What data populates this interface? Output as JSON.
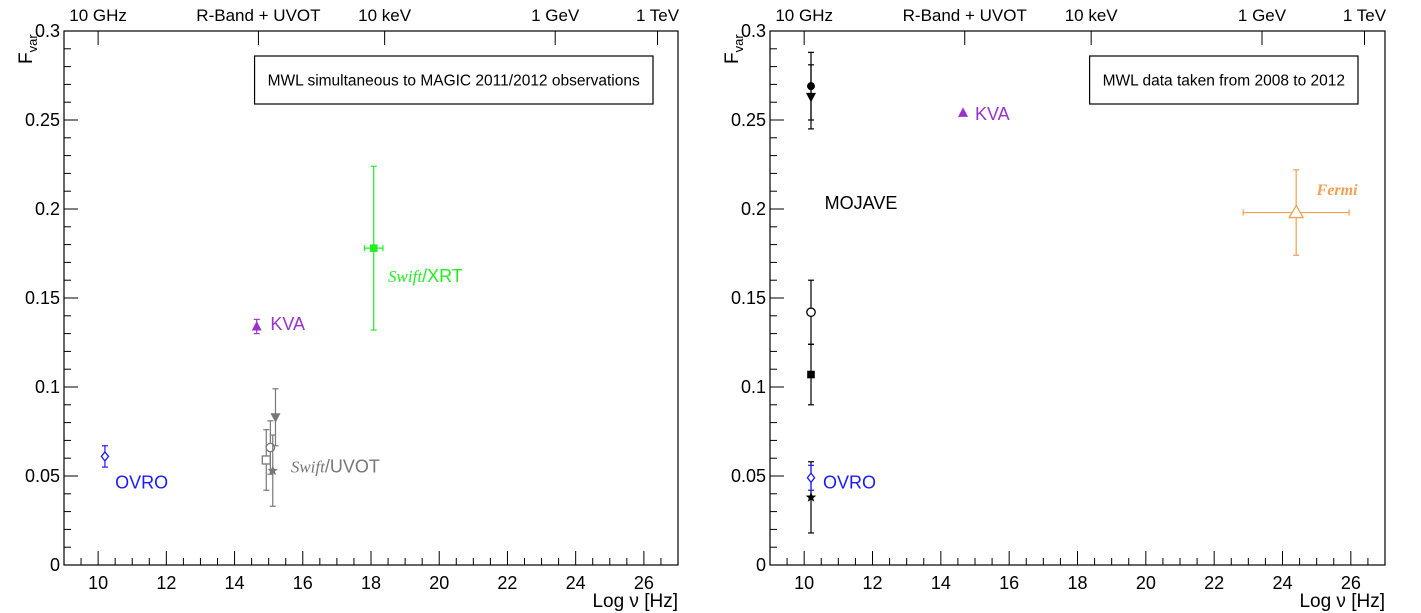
{
  "chart_data": [
    {
      "type": "scatter",
      "xlabel": "Log ν [Hz]",
      "ylabel": "F",
      "ylabel_sub": "var",
      "xlim": [
        9,
        27
      ],
      "ylim": [
        0,
        0.3
      ],
      "xticks": [
        10,
        12,
        14,
        16,
        18,
        20,
        22,
        24,
        26
      ],
      "yticks": [
        0,
        0.05,
        0.1,
        0.15,
        0.2,
        0.25,
        0.3
      ],
      "ytick_labels": [
        "0",
        "0.05",
        "0.1",
        "0.15",
        "0.2",
        "0.25",
        "0.3"
      ],
      "top_axis": [
        {
          "label": "10 GHz",
          "x": 10
        },
        {
          "label": "R-Band + UVOT",
          "x": 14.7
        },
        {
          "label": "10 keV",
          "x": 18.4
        },
        {
          "label": "1 GeV",
          "x": 23.4
        },
        {
          "label": "1 TeV",
          "x": 26.4
        }
      ],
      "legend": "MWL simultaneous to MAGIC 2011/2012 observations",
      "series": [
        {
          "color": "#1a1aff",
          "points": [
            {
              "x": 10.2,
              "y": 0.061,
              "yerr": 0.006,
              "marker": "open-diamond"
            }
          ]
        },
        {
          "color": "#9933cc",
          "points": [
            {
              "x": 14.65,
              "y": 0.134,
              "yerr": 0.004,
              "marker": "filled-triangle-up"
            }
          ]
        },
        {
          "color": "#22ee22",
          "points": [
            {
              "x": 18.08,
              "y": 0.178,
              "yerr": 0.046,
              "xerr": 0.27,
              "marker": "filled-square"
            }
          ]
        },
        {
          "color": "#777777",
          "points": [
            {
              "x": 14.93,
              "y": 0.059,
              "yerr": 0.017,
              "marker": "open-square"
            },
            {
              "x": 15.05,
              "y": 0.066,
              "yerr": 0.015,
              "marker": "open-circle"
            },
            {
              "x": 15.12,
              "y": 0.053,
              "yerr": 0.02,
              "marker": "filled-star"
            },
            {
              "x": 15.2,
              "y": 0.083,
              "yerr": 0.016,
              "marker": "filled-triangle-down"
            }
          ]
        }
      ],
      "annotations": [
        {
          "text": "OVRO",
          "x": 10.5,
          "y": 0.043,
          "color": "#1a1aff"
        },
        {
          "text": "KVA",
          "x": 15.05,
          "y": 0.132,
          "color": "#9933cc"
        },
        {
          "italic": "Swift",
          "text": "/XRT",
          "x": 18.5,
          "y": 0.159,
          "color": "#22ee22"
        },
        {
          "italic": "Swift",
          "text": "/UVOT",
          "x": 15.65,
          "y": 0.052,
          "color": "#777777"
        }
      ]
    },
    {
      "type": "scatter",
      "xlabel": "Log ν [Hz]",
      "ylabel": "F",
      "ylabel_sub": "var",
      "xlim": [
        9,
        27
      ],
      "ylim": [
        0,
        0.3
      ],
      "xticks": [
        10,
        12,
        14,
        16,
        18,
        20,
        22,
        24,
        26
      ],
      "yticks": [
        0,
        0.05,
        0.1,
        0.15,
        0.2,
        0.25,
        0.3
      ],
      "ytick_labels": [
        "0",
        "0.05",
        "0.1",
        "0.15",
        "0.2",
        "0.25",
        "0.3"
      ],
      "top_axis": [
        {
          "label": "10 GHz",
          "x": 10
        },
        {
          "label": "R-Band + UVOT",
          "x": 14.7
        },
        {
          "label": "10 keV",
          "x": 18.4
        },
        {
          "label": "1 GeV",
          "x": 23.4
        },
        {
          "label": "1 TeV",
          "x": 26.4
        }
      ],
      "legend": "MWL data taken from 2008 to 2012",
      "series": [
        {
          "color": "#000000",
          "points": [
            {
              "x": 10.2,
              "y": 0.269,
              "yerr": 0.019,
              "marker": "filled-circle"
            },
            {
              "x": 10.2,
              "y": 0.263,
              "yerr": 0.018,
              "marker": "filled-triangle-down"
            },
            {
              "x": 10.2,
              "y": 0.142,
              "yerr": 0.018,
              "marker": "open-circle"
            },
            {
              "x": 10.2,
              "y": 0.107,
              "yerr": 0.017,
              "marker": "filled-square"
            },
            {
              "x": 10.2,
              "y": 0.038,
              "yerr": 0.02,
              "marker": "filled-star"
            }
          ]
        },
        {
          "color": "#1a1aff",
          "points": [
            {
              "x": 10.2,
              "y": 0.049,
              "yerr": 0.007,
              "marker": "open-diamond"
            }
          ]
        },
        {
          "color": "#9933cc",
          "points": [
            {
              "x": 14.65,
              "y": 0.254,
              "yerr": 0,
              "marker": "filled-triangle-up"
            }
          ]
        },
        {
          "color": "#f0a050",
          "points": [
            {
              "x": 24.4,
              "y": 0.198,
              "yerr": 0.024,
              "xerr": 1.55,
              "marker": "open-triangle-up"
            }
          ]
        }
      ],
      "annotations": [
        {
          "text": "MOJAVE",
          "x": 10.6,
          "y": 0.2,
          "color": "#000000"
        },
        {
          "text": "OVRO",
          "x": 10.55,
          "y": 0.043,
          "color": "#1a1aff"
        },
        {
          "text": "KVA",
          "x": 15.0,
          "y": 0.25,
          "color": "#9933cc"
        },
        {
          "italic": "Fermi",
          "text": "",
          "x": 25.0,
          "y": 0.208,
          "color": "#f0a050"
        }
      ]
    }
  ]
}
